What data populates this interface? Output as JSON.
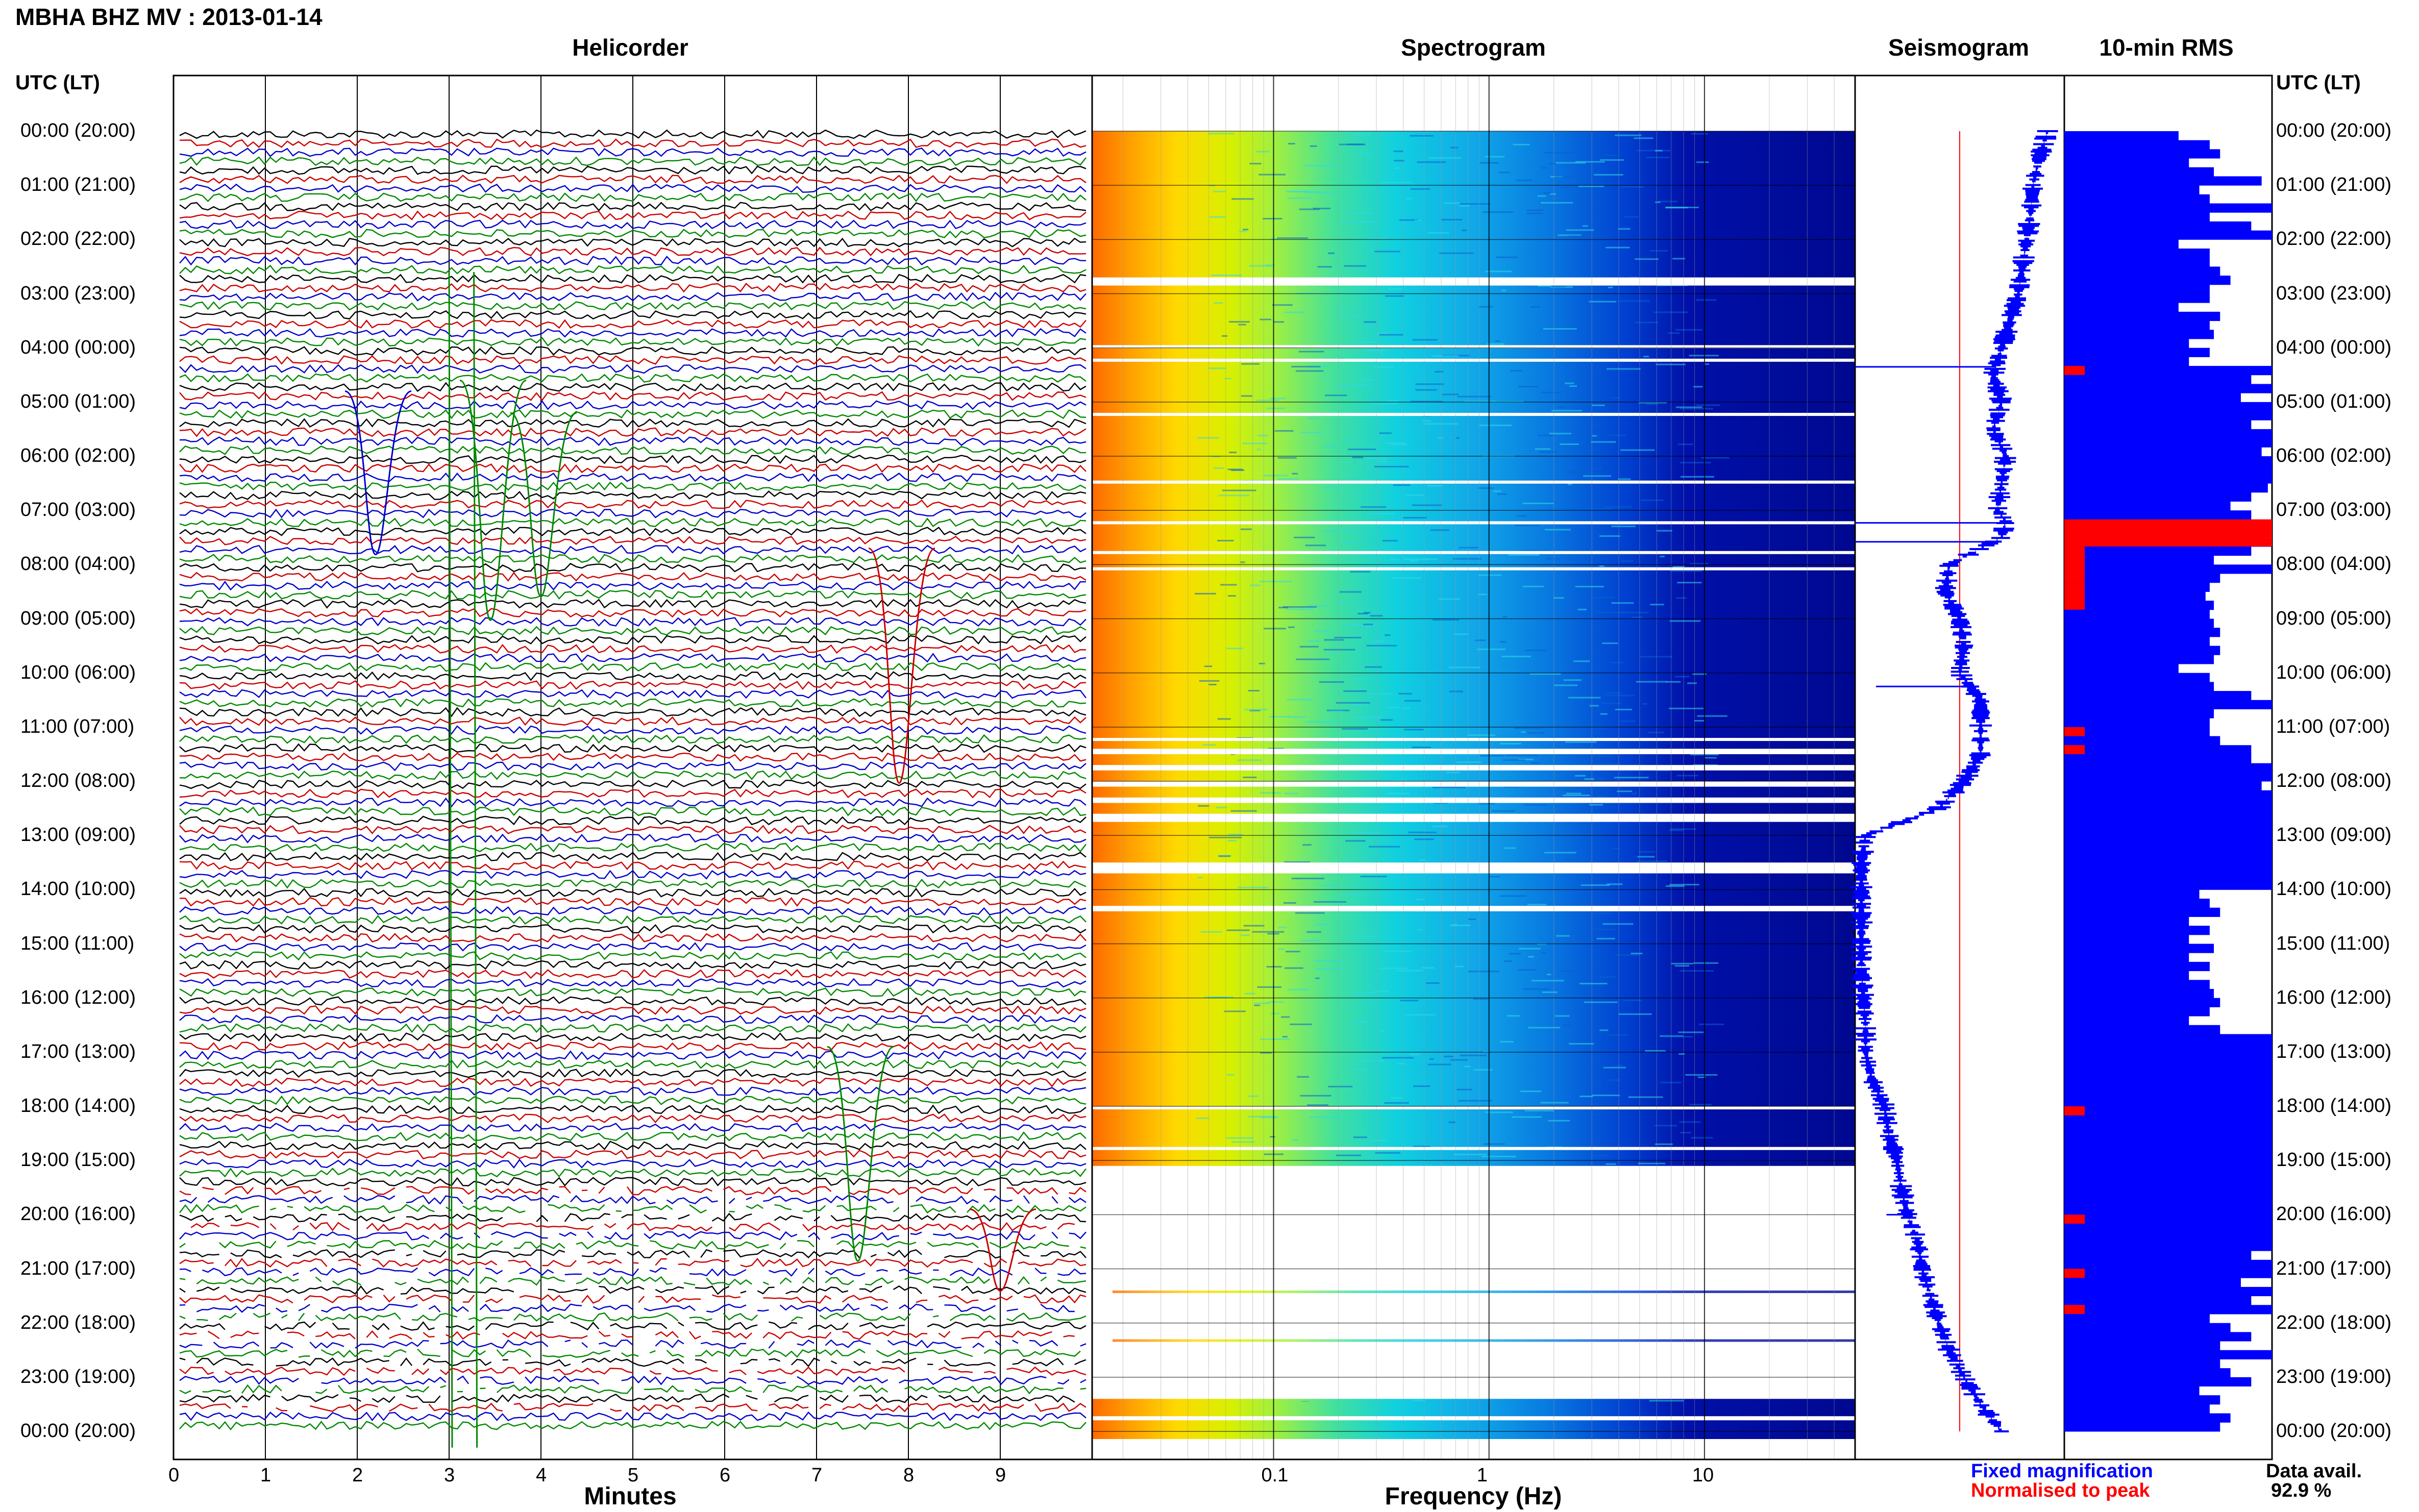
{
  "header": {
    "title": "MBHA BHZ MV : 2013-01-14",
    "time_axis_label": "UTC (LT)"
  },
  "panels": {
    "helicorder": "Helicorder",
    "spectrogram": "Spectrogram",
    "seismogram": "Seismogram",
    "rms": "10-min RMS"
  },
  "hour_labels": [
    "00:00 (20:00)",
    "01:00 (21:00)",
    "02:00 (22:00)",
    "03:00 (23:00)",
    "04:00 (00:00)",
    "05:00 (01:00)",
    "06:00 (02:00)",
    "07:00 (03:00)",
    "08:00 (04:00)",
    "09:00 (05:00)",
    "10:00 (06:00)",
    "11:00 (07:00)",
    "12:00 (08:00)",
    "13:00 (09:00)",
    "14:00 (10:00)",
    "15:00 (11:00)",
    "16:00 (12:00)",
    "17:00 (13:00)",
    "18:00 (14:00)",
    "19:00 (15:00)",
    "20:00 (16:00)",
    "21:00 (17:00)",
    "22:00 (18:00)",
    "23:00 (19:00)",
    "00:00 (20:00)"
  ],
  "axes": {
    "minutes_label": "Minutes",
    "minutes_ticks": [
      "0",
      "1",
      "2",
      "3",
      "4",
      "5",
      "6",
      "7",
      "8",
      "9"
    ],
    "frequency_label": "Frequency (Hz)",
    "frequency_ticks": [
      "0.1",
      "1",
      "10"
    ]
  },
  "legend": {
    "fixed": "Fixed magnification",
    "normalised": "Normalised to peak",
    "fixed_color": "#0000ff",
    "normalised_color": "#ff0000"
  },
  "availability": {
    "label": "Data avail.",
    "value": "92.9 %"
  },
  "colors": {
    "trace_cycle": [
      "#000000",
      "#cc0000",
      "#0000cc",
      "#008800"
    ],
    "rms_fill": "#0000ff",
    "rms_flag": "#ff0000",
    "spectrogram_no_data": "#ffffff"
  },
  "chart_data": [
    {
      "type": "line",
      "name_panel": "Helicorder",
      "x_unit": "minutes",
      "xlim": [
        0,
        10
      ],
      "rows": 144,
      "row_minutes": 10,
      "gap_windows_hours": [
        [
          19.5,
          23.6
        ]
      ]
    },
    {
      "type": "heatmap",
      "name_panel": "Spectrogram",
      "x_scale": "log",
      "xlim_hz": [
        0.02,
        50
      ],
      "no_data_hours": [
        [
          2.7,
          2.85
        ],
        [
          3.95,
          4.0
        ],
        [
          4.2,
          4.25
        ],
        [
          5.2,
          5.25
        ],
        [
          6.45,
          6.5
        ],
        [
          7.2,
          7.25
        ],
        [
          7.75,
          7.8
        ],
        [
          8.05,
          8.1
        ],
        [
          11.2,
          11.25
        ],
        [
          11.4,
          11.5
        ],
        [
          11.7,
          11.8
        ],
        [
          12.0,
          12.1
        ],
        [
          12.3,
          12.4
        ],
        [
          12.6,
          12.75
        ],
        [
          13.5,
          13.7
        ],
        [
          14.3,
          14.4
        ],
        [
          18.0,
          18.05
        ],
        [
          18.75,
          18.8
        ],
        [
          19.1,
          23.4
        ]
      ]
    },
    {
      "type": "line",
      "name_panel": "Seismogram",
      "series_names": [
        "Fixed magnification",
        "Normalised to peak"
      ],
      "fixed_profile_hours": [
        0,
        0.5,
        1,
        1.5,
        2,
        2.5,
        3,
        3.5,
        4,
        4.5,
        5,
        5.5,
        6,
        6.5,
        7,
        7.2,
        7.5,
        8,
        8.5,
        9,
        9.5,
        10,
        10.5,
        11,
        11.5,
        12,
        12.5,
        13,
        13.5,
        14,
        14.5,
        15,
        15.5,
        16,
        16.5,
        17,
        17.5,
        18,
        18.5,
        19,
        19.5,
        20,
        20.5,
        21,
        21.5,
        22,
        22.5,
        23,
        23.5,
        24
      ],
      "fixed_profile_level": [
        0.92,
        0.88,
        0.85,
        0.84,
        0.82,
        0.8,
        0.78,
        0.74,
        0.7,
        0.66,
        0.7,
        0.66,
        0.72,
        0.7,
        0.68,
        0.72,
        0.7,
        0.45,
        0.43,
        0.5,
        0.52,
        0.5,
        0.6,
        0.6,
        0.6,
        0.52,
        0.4,
        0.05,
        0.03,
        0.03,
        0.03,
        0.03,
        0.03,
        0.04,
        0.05,
        0.05,
        0.08,
        0.14,
        0.16,
        0.2,
        0.22,
        0.25,
        0.3,
        0.32,
        0.36,
        0.4,
        0.45,
        0.52,
        0.6,
        0.7
      ],
      "normalised_level": 0.5
    },
    {
      "type": "bar",
      "name_panel": "10-min RMS",
      "orientation": "horizontal",
      "rms_rows": 144,
      "rms_levels": [
        0.55,
        0.7,
        0.75,
        0.6,
        0.72,
        0.95,
        0.65,
        0.7,
        1.0,
        0.7,
        0.9,
        1.0,
        0.55,
        0.7,
        0.7,
        0.75,
        0.8,
        0.7,
        0.7,
        0.55,
        0.75,
        0.7,
        0.72,
        0.6,
        0.7,
        0.6,
        1.0,
        0.9,
        1.0,
        0.85,
        1.0,
        1.0,
        0.9,
        1.0,
        1.0,
        0.95,
        1.0,
        1.0,
        1.0,
        0.98,
        0.9,
        0.8,
        0.9,
        1.0,
        0.95,
        1.0,
        0.9,
        0.72,
        1.0,
        0.75,
        0.7,
        0.68,
        0.72,
        0.7,
        0.72,
        0.75,
        0.7,
        0.75,
        0.72,
        0.55,
        0.7,
        0.72,
        0.9,
        1.0,
        0.72,
        0.7,
        0.7,
        0.75,
        0.9,
        0.9,
        1.0,
        1.0,
        0.95,
        1.0,
        1.0,
        1.0,
        1.0,
        1.0,
        1.0,
        1.0,
        1.0,
        1.0,
        1.0,
        1.0,
        0.65,
        0.7,
        0.75,
        0.6,
        0.7,
        0.6,
        0.72,
        0.6,
        0.7,
        0.6,
        0.7,
        0.72,
        0.75,
        0.7,
        0.6,
        0.75,
        1.0,
        1.0,
        1.0,
        1.0,
        1.0,
        1.0,
        1.0,
        1.0,
        1.0,
        1.0,
        1.0,
        1.0,
        1.0,
        1.0,
        1.0,
        1.0,
        1.0,
        1.0,
        1.0,
        1.0,
        1.0,
        1.0,
        1.0,
        1.0,
        0.9,
        1.0,
        1.0,
        0.85,
        1.0,
        0.9,
        1.0,
        0.7,
        0.8,
        0.9,
        0.75,
        1.0,
        0.75,
        0.8,
        0.9,
        0.65,
        0.75,
        0.7,
        0.8,
        0.75
      ],
      "rms_flag_rows": [
        26,
        43,
        44,
        45,
        46,
        47,
        48,
        49,
        50,
        51,
        52,
        66,
        68,
        108,
        120,
        126,
        130
      ]
    }
  ]
}
